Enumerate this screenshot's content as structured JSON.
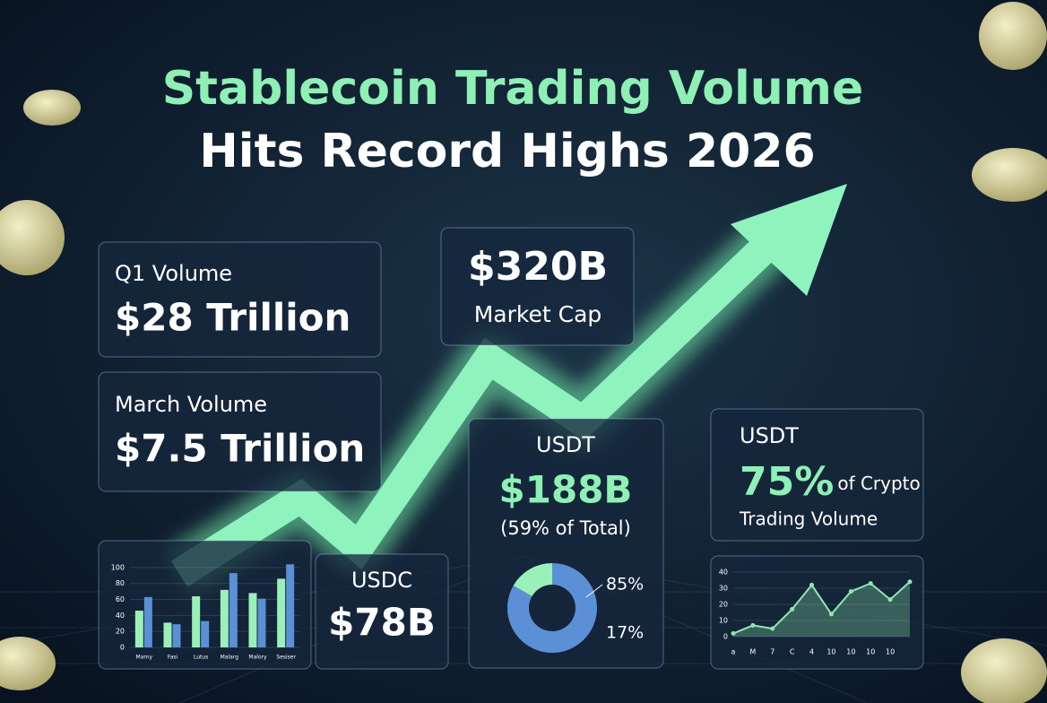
{
  "header": {
    "title_line1": "Stablecoin Trading Volume",
    "title_line2": "Hits Record Highs 2026"
  },
  "cards": {
    "q1": {
      "label": "Q1 Volume",
      "value": "$28 Trillion"
    },
    "march": {
      "label": "March Volume",
      "value": "$7.5 Trillion"
    },
    "market_cap": {
      "value": "$320B",
      "label": "Market Cap"
    },
    "usdc": {
      "label": "USDC",
      "value": "$78B"
    },
    "usdt_cap": {
      "label": "USDT",
      "value": "$188B",
      "note": "(59% of Total)"
    },
    "usdt_share": {
      "label": "USDT",
      "value": "75%",
      "suffix": "of Crypto",
      "suffix_line2": "Trading Volume"
    }
  },
  "chart_data": [
    {
      "type": "bar",
      "categories": [
        "Marny",
        "Fasi",
        "Lutus",
        "Malarg",
        "Malory",
        "Sesiser"
      ],
      "series": [
        {
          "color": "#9af0b8",
          "values": [
            46,
            31,
            64,
            72,
            68,
            86
          ]
        },
        {
          "color": "#5b8fd6",
          "values": [
            63,
            29,
            33,
            93,
            61,
            104
          ]
        }
      ],
      "ylim": [
        0,
        110
      ],
      "yticks": [
        0,
        20,
        40,
        60,
        80,
        100
      ],
      "grid": true
    },
    {
      "type": "pie",
      "values": [
        85,
        17
      ],
      "value_labels": [
        "85%",
        "17%"
      ],
      "colors": [
        "#5b8fd6",
        "#9af0b8"
      ]
    },
    {
      "type": "line",
      "categories": [
        "a",
        "M",
        "7",
        "C",
        "4",
        "10",
        "10",
        "10",
        "10",
        null
      ],
      "values": [
        2,
        7,
        5,
        17,
        32,
        14,
        28,
        33,
        23,
        34
      ],
      "color": "#8fe8b0",
      "ylim": [
        0,
        40
      ],
      "yticks": [
        0,
        10,
        20,
        30,
        40
      ],
      "grid": true
    }
  ]
}
